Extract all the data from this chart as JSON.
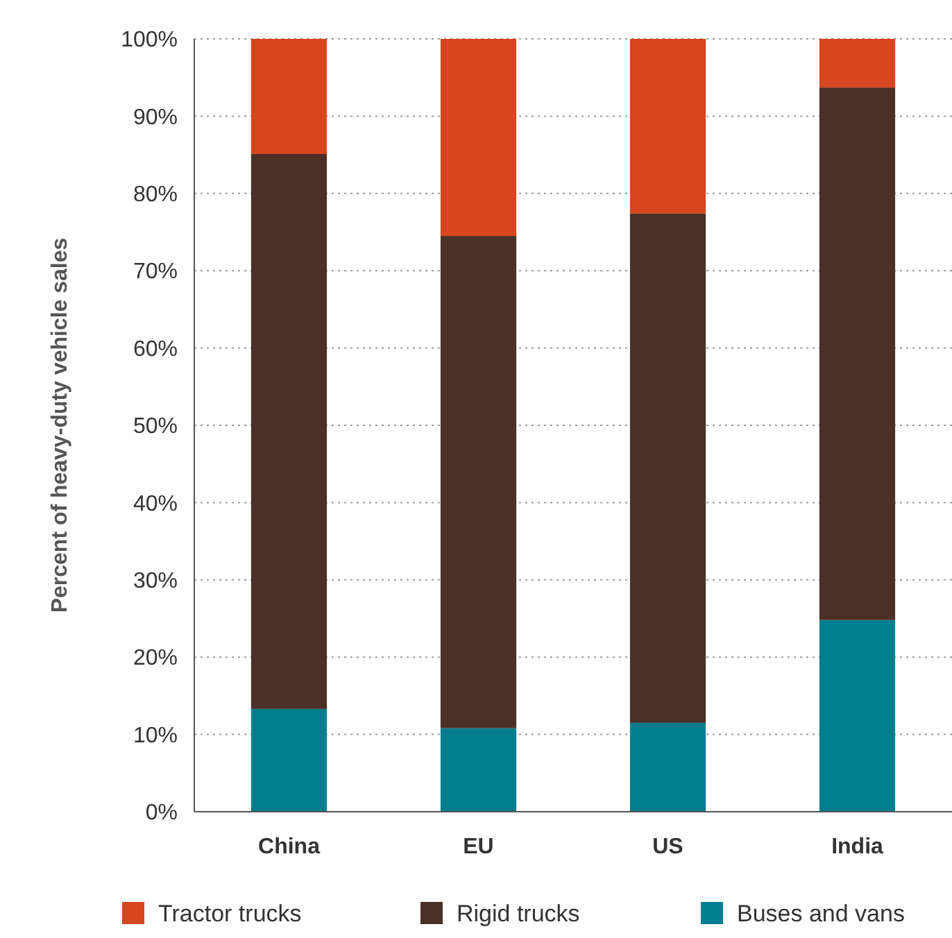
{
  "chart_data": {
    "type": "bar",
    "stacked": true,
    "ylabel": "Percent of heavy-duty vehicle sales",
    "categories": [
      "China",
      "EU",
      "US",
      "India"
    ],
    "series": [
      {
        "name": "Buses and vans",
        "color": "#007e8f",
        "values": [
          13.3,
          10.8,
          11.5,
          24.8
        ]
      },
      {
        "name": "Rigid trucks",
        "color": "#4b3026",
        "values": [
          71.8,
          63.7,
          65.9,
          68.9
        ]
      },
      {
        "name": "Tractor trucks",
        "color": "#d6461f",
        "values": [
          14.9,
          25.5,
          22.6,
          6.3
        ]
      }
    ],
    "ylim": [
      0,
      100
    ],
    "yticks": [
      {
        "value": 0,
        "label": "0%"
      },
      {
        "value": 10,
        "label": "10%"
      },
      {
        "value": 20,
        "label": "20%"
      },
      {
        "value": 30,
        "label": "30%"
      },
      {
        "value": 40,
        "label": "40%"
      },
      {
        "value": 50,
        "label": "50%"
      },
      {
        "value": 60,
        "label": "60%"
      },
      {
        "value": 70,
        "label": "70%"
      },
      {
        "value": 80,
        "label": "80%"
      },
      {
        "value": 90,
        "label": "90%"
      },
      {
        "value": 100,
        "label": "100%"
      }
    ],
    "grid": "y",
    "legend": "bottom"
  }
}
